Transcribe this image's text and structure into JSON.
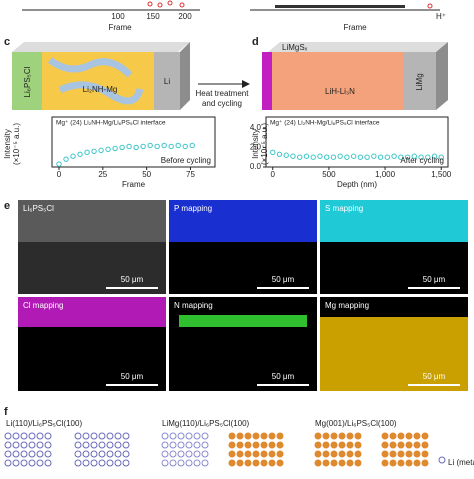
{
  "top": {
    "left": {
      "xlabel": "Frame",
      "xticks": [
        "100",
        "150",
        "200"
      ]
    },
    "right": {
      "xlabel": "Frame",
      "legend": "H⁺"
    }
  },
  "panel_c": {
    "letter": "c",
    "electrolyte": "Li₆PS₅Cl",
    "anode": "Li₂NH-Mg",
    "metal": "Li"
  },
  "arrow": {
    "line1": "Heat treatment",
    "line2": "and cycling"
  },
  "panel_d": {
    "letter": "d",
    "layer": "LiMgSₓ",
    "anode": "LiH-Li₃N",
    "metal": "LiMg"
  },
  "chart_data": [
    {
      "type": "scatter",
      "title": "Mg⁺ (24) Li₂NH-Mg/Li₆PS₅Cl interface",
      "annotation": "Before cycling",
      "xlabel": "Frame",
      "ylabel": [
        "Intensity",
        "(×10⁻⁵ a.u.)"
      ],
      "color": "#3cc6c9",
      "x": [
        0,
        4,
        8,
        12,
        16,
        20,
        24,
        28,
        32,
        36,
        40,
        44,
        48,
        52,
        56,
        60,
        64,
        68,
        72,
        76
      ],
      "values": [
        0.3,
        0.8,
        1.1,
        1.3,
        1.5,
        1.6,
        1.7,
        1.8,
        1.9,
        2.0,
        2.1,
        2.0,
        2.1,
        2.2,
        2.1,
        2.2,
        2.1,
        2.2,
        2.1,
        2.2
      ],
      "xlim": [
        -4,
        89
      ],
      "ylim": [
        0,
        4.7
      ],
      "xticks": [
        0,
        25,
        50,
        75
      ]
    },
    {
      "type": "scatter",
      "title": "Mg⁺ (24) Li₂NH-Mg/Li₆PS₅Cl interface",
      "annotation": "After cycling",
      "xlabel": "Depth (nm)",
      "ylabel": [
        "Intensity",
        "(×10⁻⁵ a.u.)"
      ],
      "color": "#3cc6c9",
      "x": [
        0,
        60,
        120,
        180,
        240,
        300,
        360,
        420,
        480,
        540,
        600,
        660,
        720,
        780,
        840,
        900,
        960,
        1020,
        1080,
        1140,
        1200,
        1260,
        1320,
        1380,
        1440,
        1500
      ],
      "values": [
        1.5,
        1.3,
        1.2,
        1.1,
        1.0,
        1.1,
        1.0,
        1.1,
        1.0,
        1.0,
        1.1,
        1.0,
        1.1,
        1.0,
        1.0,
        1.1,
        1.0,
        1.0,
        1.1,
        1.0,
        1.0,
        1.1,
        1.0,
        1.0,
        1.1,
        1.0
      ],
      "xlim": [
        -60,
        1560
      ],
      "ylim": [
        0,
        4.7
      ],
      "xticks": [
        0,
        500,
        {
          "value": 1000,
          "label": "1,000"
        },
        {
          "value": 1500,
          "label": "1,500"
        }
      ],
      "yticks": [
        {
          "value": 0,
          "label": "0.0"
        },
        {
          "value": 2,
          "label": "2.0"
        },
        {
          "value": 4,
          "label": "4.0"
        }
      ]
    }
  ],
  "panel_e": {
    "letter": "e",
    "tiles": [
      {
        "label": "Li₆PS₅Cl",
        "scale": "50 μm"
      },
      {
        "label": "P mapping",
        "scale": "50 μm"
      },
      {
        "label": "S mapping",
        "scale": "50 μm"
      },
      {
        "label": "Cl mapping",
        "scale": "50 μm"
      },
      {
        "label": "N mapping",
        "scale": "50 μm"
      },
      {
        "label": "Mg mapping",
        "scale": "50 μm"
      }
    ]
  },
  "panel_f": {
    "letter": "f",
    "models": [
      "Li(110)/Li₆PS₅Cl(100)",
      "LiMg(110)/Li₆PS₅Cl(100)",
      "Mg(001)/Li₆PS₅Cl(100)"
    ],
    "legend": "Li (metal)"
  }
}
